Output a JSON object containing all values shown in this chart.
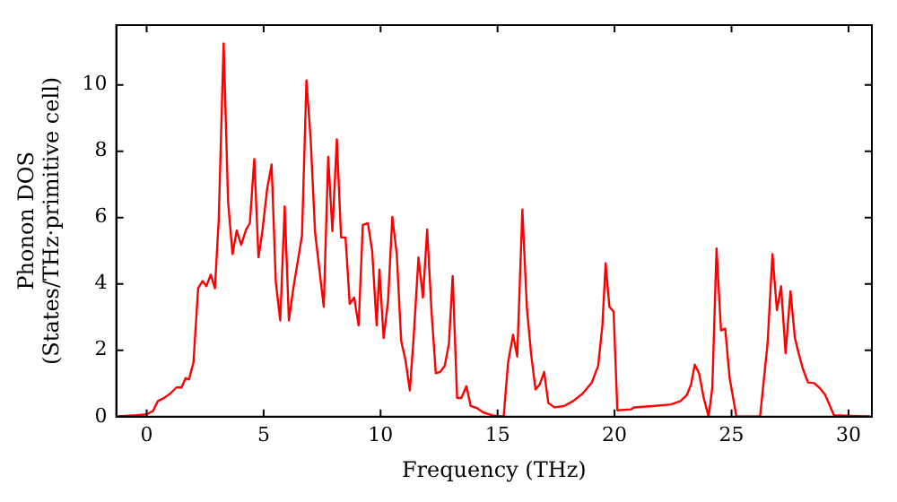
{
  "chart_data": {
    "type": "line",
    "xlabel": "Frequency (THz)",
    "ylabel": "Phonon DOS\n(States/THz·primitive cell)",
    "xlim": [
      -1.3,
      31
    ],
    "ylim": [
      0,
      11.8
    ],
    "xticks": [
      0,
      5,
      10,
      15,
      20,
      25,
      30
    ],
    "yticks": [
      0,
      2,
      4,
      6,
      8,
      10
    ],
    "grid": false,
    "legend": false,
    "marker": "none",
    "line_style": "solid",
    "series": [
      {
        "color": "#ff0000",
        "x": [
          -1.3,
          -0.45,
          0,
          0.27,
          0.48,
          0.74,
          1.0,
          1.27,
          1.49,
          1.67,
          1.81,
          2.0,
          2.2,
          2.39,
          2.55,
          2.74,
          2.92,
          3.08,
          3.29,
          3.48,
          3.67,
          3.85,
          4.04,
          4.25,
          4.41,
          4.6,
          4.78,
          4.94,
          5.15,
          5.34,
          5.52,
          5.71,
          5.9,
          6.08,
          6.27,
          6.64,
          6.83,
          7.01,
          7.2,
          7.57,
          7.76,
          7.94,
          8.13,
          8.31,
          8.5,
          8.68,
          8.87,
          9.06,
          9.24,
          9.46,
          9.64,
          9.83,
          9.95,
          10.13,
          10.32,
          10.5,
          10.69,
          10.88,
          11.06,
          11.25,
          11.41,
          11.62,
          11.81,
          11.99,
          12.18,
          12.36,
          12.55,
          12.74,
          12.92,
          13.08,
          13.27,
          13.45,
          13.67,
          13.85,
          14.12,
          14.38,
          14.78,
          15.26,
          15.45,
          15.66,
          15.84,
          16.06,
          16.25,
          16.43,
          16.62,
          16.8,
          16.99,
          17.17,
          17.44,
          17.84,
          18.23,
          18.63,
          19.03,
          19.3,
          19.48,
          19.62,
          19.78,
          19.96,
          20.12,
          20.7,
          20.83,
          21.63,
          22.42,
          22.82,
          23.09,
          23.27,
          23.43,
          23.62,
          23.8,
          24.02,
          24.18,
          24.36,
          24.55,
          24.73,
          24.92,
          25.21,
          26.22,
          26.54,
          26.75,
          26.94,
          27.12,
          27.31,
          27.52,
          27.71,
          27.87,
          28.05,
          28.27,
          28.53,
          28.8,
          29.01,
          29.38,
          30.92
        ],
        "values": [
          0,
          0.04,
          0.07,
          0.17,
          0.47,
          0.56,
          0.69,
          0.88,
          0.88,
          1.16,
          1.12,
          1.63,
          3.87,
          4.09,
          3.93,
          4.28,
          3.87,
          5.93,
          11.25,
          6.49,
          4.9,
          5.61,
          5.18,
          5.64,
          5.83,
          7.76,
          4.8,
          5.55,
          6.86,
          7.6,
          4.06,
          2.9,
          6.34,
          2.9,
          3.87,
          5.46,
          10.13,
          8.36,
          5.55,
          3.31,
          7.83,
          5.59,
          8.36,
          5.4,
          5.4,
          3.4,
          3.59,
          2.75,
          5.78,
          5.83,
          4.99,
          2.75,
          4.43,
          2.37,
          3.5,
          6.02,
          4.9,
          2.28,
          1.72,
          0.79,
          2.37,
          4.8,
          3.59,
          5.64,
          3.12,
          1.31,
          1.35,
          1.53,
          2.19,
          4.24,
          0.56,
          0.56,
          0.92,
          0.32,
          0.26,
          0.13,
          0.04,
          0,
          1.63,
          2.47,
          1.81,
          6.24,
          3.31,
          1.91,
          0.82,
          0.97,
          1.35,
          0.41,
          0.28,
          0.32,
          0.47,
          0.69,
          1.03,
          1.53,
          2.75,
          4.62,
          3.31,
          3.16,
          0.19,
          0.22,
          0.28,
          0.32,
          0.37,
          0.47,
          0.65,
          0.97,
          1.57,
          1.29,
          0.6,
          0,
          0.88,
          5.07,
          2.6,
          2.65,
          1.16,
          0,
          0,
          2.19,
          4.9,
          3.21,
          3.93,
          1.91,
          3.78,
          2.37,
          1.91,
          1.44,
          1.03,
          1.01,
          0.84,
          0.65,
          0.04,
          0
        ]
      }
    ]
  }
}
